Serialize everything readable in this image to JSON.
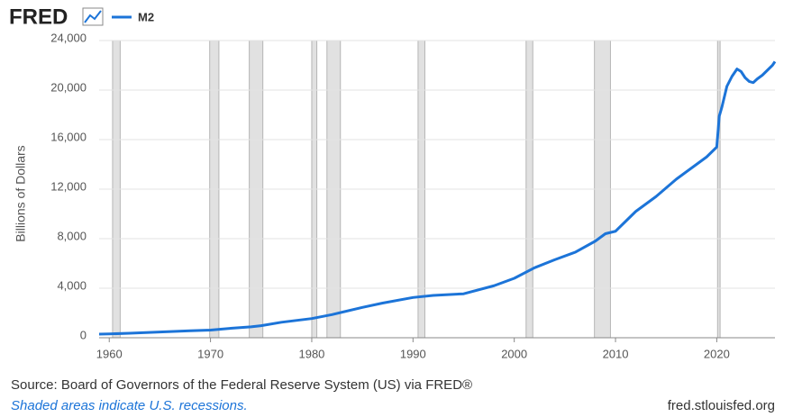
{
  "chart_data": {
    "type": "line",
    "brand": "FRED",
    "ylabel": "Billions of Dollars",
    "source": "Source: Board of Governors of the Federal Reserve System (US) via FRED®",
    "note": "Shaded areas indicate U.S. recessions.",
    "site": "fred.stlouisfed.org",
    "x": [
      1959,
      1960,
      1962,
      1965,
      1968,
      1970,
      1972,
      1974,
      1975,
      1977,
      1980,
      1982,
      1985,
      1987,
      1990,
      1992,
      1995,
      1998,
      2000,
      2002,
      2004,
      2006,
      2008,
      2009,
      2010,
      2011,
      2012,
      2014,
      2016,
      2018,
      2019,
      2020,
      2020.25,
      2020.5,
      2021,
      2021.5,
      2022,
      2022.4,
      2022.8,
      2023.2,
      2023.6,
      2024,
      2024.5,
      2025,
      2025.5,
      2025.75
    ],
    "series": [
      {
        "name": "M2",
        "color": "#1c74d8",
        "values": [
          290,
          310,
          360,
          460,
          560,
          620,
          760,
          880,
          970,
          1250,
          1550,
          1870,
          2450,
          2800,
          3250,
          3420,
          3550,
          4200,
          4800,
          5650,
          6300,
          6900,
          7800,
          8400,
          8600,
          9400,
          10200,
          11400,
          12800,
          14000,
          14600,
          15400,
          17900,
          18600,
          20300,
          21100,
          21700,
          21500,
          21000,
          20700,
          20600,
          20900,
          21200,
          21600,
          22000,
          22300
        ]
      }
    ],
    "recessions": [
      [
        1960.33,
        1961.08
      ],
      [
        1969.92,
        1970.83
      ],
      [
        1973.83,
        1975.17
      ],
      [
        1980.0,
        1980.5
      ],
      [
        1981.5,
        1982.83
      ],
      [
        1990.5,
        1991.17
      ],
      [
        2001.17,
        2001.83
      ],
      [
        2007.92,
        2009.5
      ],
      [
        2020.08,
        2020.33
      ]
    ],
    "xlim": [
      1959,
      2025.75
    ],
    "ylim": [
      0,
      24000
    ],
    "xticks": [
      1960,
      1970,
      1980,
      1990,
      2000,
      2010,
      2020
    ],
    "yticks": [
      0,
      {
        "value": 4000,
        "label": "4,000"
      },
      {
        "value": 8000,
        "label": "8,000"
      },
      {
        "value": 12000,
        "label": "12,000"
      },
      {
        "value": 16000,
        "label": "16,000"
      },
      {
        "value": 20000,
        "label": "20,000"
      },
      {
        "value": 24000,
        "label": "24,000"
      }
    ],
    "grid": true
  }
}
